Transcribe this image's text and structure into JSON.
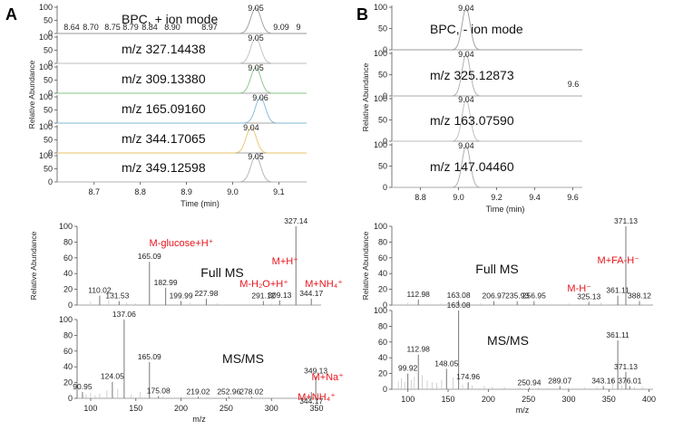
{
  "panels": [
    {
      "letter": "A"
    },
    {
      "letter": "B"
    }
  ],
  "axis_labels": {
    "relative_abundance": "Relative Abundance",
    "time": "Time (min)",
    "mz": "m/z"
  },
  "chart_data": [
    {
      "id": "chrom_pos",
      "type": "line",
      "title": "BPC, + ion mode",
      "xlabel": "Time (min)",
      "ylabel": "Relative Abundance",
      "xlim": [
        8.62,
        9.16
      ],
      "xticks": [
        "8.7",
        "8.8",
        "8.9",
        "9.0",
        "9.1"
      ],
      "yticks": [
        "0",
        "50",
        "100"
      ],
      "traces": [
        {
          "label": "BPC, + ion mode",
          "apex": 9.05,
          "apex_label": "9.05",
          "minor_labels": [
            "8.64",
            "8.70",
            "8.75",
            "8.79",
            "8.84",
            "8.90",
            "8.97",
            "9.09",
            "9"
          ]
        },
        {
          "label": "m/z 327.14438",
          "apex": 9.05,
          "apex_label": "9.05"
        },
        {
          "label": "m/z 309.13380",
          "apex": 9.05,
          "apex_label": "9.05"
        },
        {
          "label": "m/z 165.09160",
          "apex": 9.06,
          "apex_label": "9.06"
        },
        {
          "label": "m/z 344.17065",
          "apex": 9.04,
          "apex_label": "9.04"
        },
        {
          "label": "m/z 349.12598",
          "apex": 9.05,
          "apex_label": "9.05"
        }
      ]
    },
    {
      "id": "chrom_neg",
      "type": "line",
      "title": "BPC, - ion mode",
      "xlabel": "Time (min)",
      "ylabel": "Relative Abundance",
      "xlim": [
        8.65,
        9.65
      ],
      "xticks": [
        "8.8",
        "9.0",
        "9.2",
        "9.4",
        "9.6"
      ],
      "yticks": [
        "0",
        "50",
        "100"
      ],
      "traces": [
        {
          "label": "BPC, - ion mode",
          "apex": 9.04,
          "apex_label": "9.04"
        },
        {
          "label": "m/z 325.12873",
          "apex": 9.04,
          "apex_label": "9.04",
          "minor_labels": [
            "9.6"
          ]
        },
        {
          "label": "m/z 163.07590",
          "apex": 9.04,
          "apex_label": "9.04"
        },
        {
          "label": "m/z 147.04460",
          "apex": 9.04,
          "apex_label": "9.04"
        }
      ]
    },
    {
      "id": "ms_pos",
      "type": "bar",
      "xlabel": "m/z",
      "ylabel": "Relative Abundance",
      "xlim": [
        85,
        355
      ],
      "xticks": [
        "100",
        "150",
        "200",
        "250",
        "300",
        "350"
      ],
      "yticks": [
        "0",
        "20",
        "40",
        "60",
        "80",
        "100"
      ],
      "spectra": [
        {
          "name": "Full MS",
          "peaks": [
            {
              "mz": 110.02,
              "rel": 12,
              "label": "110.02"
            },
            {
              "mz": 131.53,
              "rel": 5,
              "label": "131.53"
            },
            {
              "mz": 165.09,
              "rel": 55,
              "label": "165.09"
            },
            {
              "mz": 182.99,
              "rel": 22,
              "label": "182.99"
            },
            {
              "mz": 199.99,
              "rel": 5,
              "label": "199.99"
            },
            {
              "mz": 227.98,
              "rel": 8,
              "label": "227.98"
            },
            {
              "mz": 291.12,
              "rel": 5,
              "label": "291.12"
            },
            {
              "mz": 309.13,
              "rel": 6,
              "label": "309.13"
            },
            {
              "mz": 327.14,
              "rel": 100,
              "label": "327.14"
            },
            {
              "mz": 344.17,
              "rel": 8,
              "label": "344.17"
            }
          ],
          "annotations": [
            "M-glucose+H⁺",
            "M+H⁺",
            "M-H₂O+H⁺",
            "M+NH₄⁺"
          ]
        },
        {
          "name": "MS/MS",
          "peaks": [
            {
              "mz": 90.95,
              "rel": 8,
              "label": "90.95"
            },
            {
              "mz": 124.05,
              "rel": 21,
              "label": "124.05"
            },
            {
              "mz": 137.06,
              "rel": 100,
              "label": "137.06"
            },
            {
              "mz": 165.09,
              "rel": 46,
              "label": "165.09"
            },
            {
              "mz": 175.08,
              "rel": 3,
              "label": "175.08"
            },
            {
              "mz": 219.02,
              "rel": 2,
              "label": "219.02"
            },
            {
              "mz": 252.96,
              "rel": 2,
              "label": "252.96"
            },
            {
              "mz": 278.02,
              "rel": 2,
              "label": "278.02"
            },
            {
              "mz": 344.17,
              "rel": 8,
              "label": "344.17"
            },
            {
              "mz": 349.13,
              "rel": 28,
              "label": "349.13"
            }
          ],
          "annotations": [
            "M+Na⁺",
            "M+NH₄⁺"
          ]
        }
      ]
    },
    {
      "id": "ms_neg",
      "type": "bar",
      "xlabel": "m/z",
      "ylabel": "Relative Abundance",
      "xlim": [
        80,
        405
      ],
      "xticks": [
        "100",
        "150",
        "200",
        "250",
        "300",
        "350",
        "400"
      ],
      "yticks": [
        "0",
        "20",
        "40",
        "60",
        "80",
        "100"
      ],
      "spectra": [
        {
          "name": "Full MS",
          "peaks": [
            {
              "mz": 112.98,
              "rel": 7,
              "label": "112.98"
            },
            {
              "mz": 163.08,
              "rel": 6,
              "label": "163.08"
            },
            {
              "mz": 206.97,
              "rel": 5,
              "label": "206.97"
            },
            {
              "mz": 235.93,
              "rel": 5,
              "label": "235.93"
            },
            {
              "mz": 256.95,
              "rel": 5,
              "label": "256.95"
            },
            {
              "mz": 325.13,
              "rel": 4,
              "label": "325.13"
            },
            {
              "mz": 361.11,
              "rel": 12,
              "label": "361.11"
            },
            {
              "mz": 371.13,
              "rel": 100,
              "label": "371.13"
            },
            {
              "mz": 388.12,
              "rel": 5,
              "label": "388.12"
            }
          ],
          "annotations": [
            "M+FA-H⁻",
            "M-H⁻"
          ]
        },
        {
          "name": "MS/MS",
          "peaks": [
            {
              "mz": 99.92,
              "rel": 20,
              "label": "99.92"
            },
            {
              "mz": 112.98,
              "rel": 44,
              "label": "112.98"
            },
            {
              "mz": 148.05,
              "rel": 26,
              "label": "148.05"
            },
            {
              "mz": 163.08,
              "rel": 100,
              "label": "163.08"
            },
            {
              "mz": 174.96,
              "rel": 9,
              "label": "174.96"
            },
            {
              "mz": 250.94,
              "rel": 2,
              "label": "250.94"
            },
            {
              "mz": 289.07,
              "rel": 4,
              "label": "289.07"
            },
            {
              "mz": 343.16,
              "rel": 4,
              "label": "343.16"
            },
            {
              "mz": 361.11,
              "rel": 62,
              "label": "361.11"
            },
            {
              "mz": 371.13,
              "rel": 22,
              "label": "371.13"
            },
            {
              "mz": 376.01,
              "rel": 4,
              "label": "376.01"
            }
          ],
          "annotations": []
        }
      ]
    }
  ]
}
